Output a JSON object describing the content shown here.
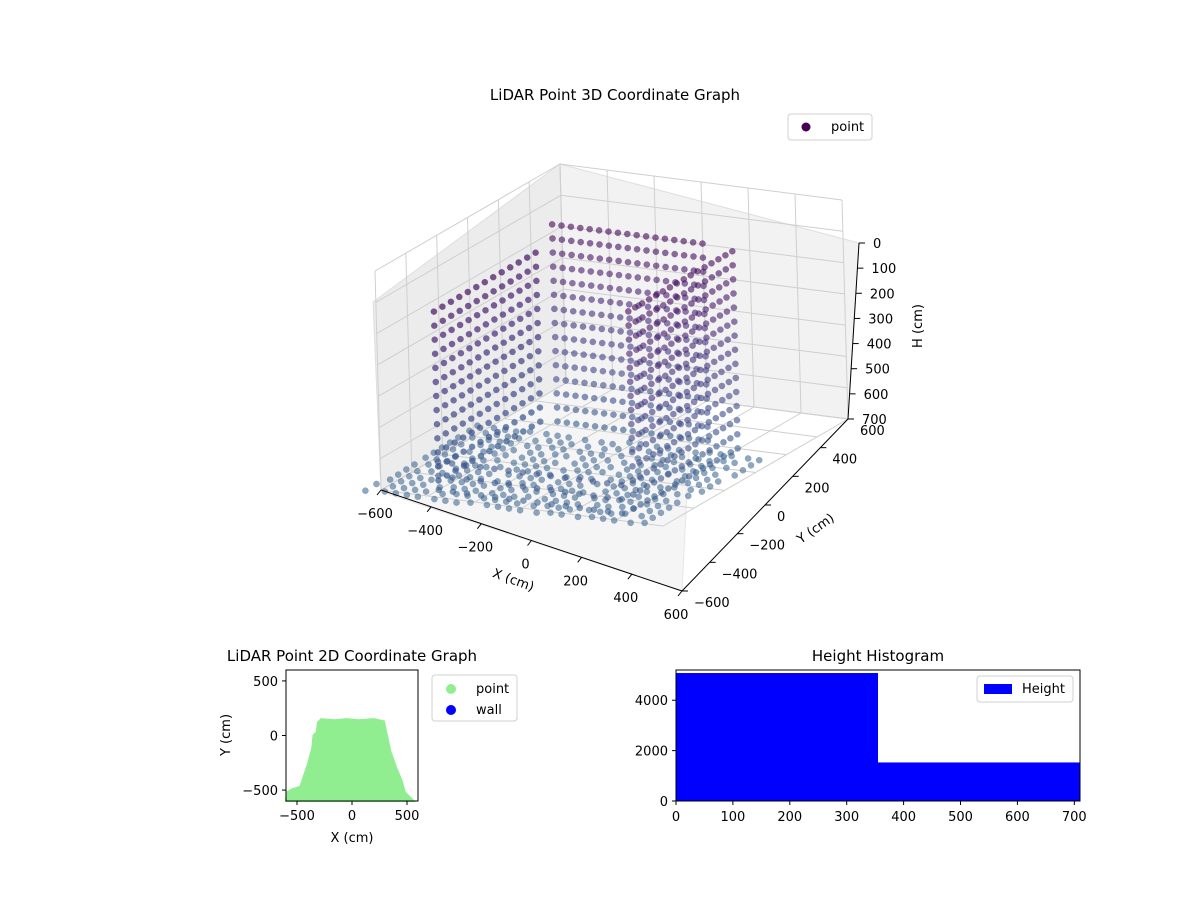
{
  "chart_data": [
    {
      "type": "scatter",
      "projection": "3d",
      "title": "LiDAR Point 3D Coordinate Graph",
      "xlabel": "X (cm)",
      "ylabel": "Y (cm)",
      "zlabel": "H (cm)",
      "xlim": [
        -600,
        600
      ],
      "ylim": [
        -600,
        600
      ],
      "zlim": [
        700,
        0
      ],
      "z_axis_inverted": true,
      "xticks": [
        -600,
        -400,
        -200,
        0,
        200,
        400,
        600
      ],
      "yticks": [
        -600,
        -400,
        -200,
        0,
        200,
        400,
        600
      ],
      "zticks": [
        0,
        100,
        200,
        300,
        400,
        500,
        600,
        700
      ],
      "legend": {
        "placement": "top-right",
        "entries": [
          {
            "label": "point",
            "color": "#440154"
          }
        ]
      },
      "colormap": "viridis",
      "grid": true,
      "series": [
        {
          "name": "point"
        }
      ],
      "walls": [
        {
          "side": "back",
          "x": [
            -340,
            320
          ],
          "y": 150,
          "h": [
            40,
            700
          ]
        },
        {
          "side": "left",
          "x": -380,
          "y": [
            -560,
            150
          ],
          "h": [
            120,
            700
          ]
        },
        {
          "side": "right",
          "x": 450,
          "y": [
            -560,
            150
          ],
          "h": [
            40,
            700
          ]
        },
        {
          "side": "front",
          "x": [
            -380,
            450
          ],
          "y": -560,
          "h": [
            600,
            700
          ]
        }
      ],
      "floor": {
        "x": [
          -620,
          580
        ],
        "y": [
          -600,
          150
        ],
        "h": 700
      }
    },
    {
      "type": "scatter",
      "title": "LiDAR Point 2D Coordinate Graph",
      "xlabel": "X (cm)",
      "ylabel": "Y (cm)",
      "xlim": [
        -600,
        600
      ],
      "ylim": [
        -600,
        600
      ],
      "xticks": [
        -500,
        0,
        500
      ],
      "yticks": [
        -500,
        0,
        500
      ],
      "legend": {
        "placement": "outside-right",
        "entries": [
          {
            "label": "point",
            "color": "#90ee90"
          },
          {
            "label": "wall",
            "color": "#0000ff"
          }
        ]
      },
      "series": [
        {
          "name": "point",
          "color": "#90ee90",
          "outline": [
            [
              -600,
              -590
            ],
            [
              -590,
              -520
            ],
            [
              -540,
              -490
            ],
            [
              -470,
              -470
            ],
            [
              -400,
              -260
            ],
            [
              -360,
              -110
            ],
            [
              -350,
              0
            ],
            [
              -320,
              30
            ],
            [
              -310,
              120
            ],
            [
              -280,
              150
            ],
            [
              -150,
              140
            ],
            [
              -50,
              150
            ],
            [
              60,
              140
            ],
            [
              200,
              150
            ],
            [
              290,
              130
            ],
            [
              300,
              80
            ],
            [
              320,
              -10
            ],
            [
              350,
              -150
            ],
            [
              400,
              -290
            ],
            [
              450,
              -410
            ],
            [
              480,
              -520
            ],
            [
              520,
              -560
            ],
            [
              560,
              -600
            ],
            [
              -600,
              -600
            ]
          ]
        },
        {
          "name": "wall",
          "color": "#0000ff",
          "values": []
        }
      ]
    },
    {
      "type": "bar",
      "subtype": "histogram",
      "title": "Height Histogram",
      "xlim": [
        0,
        710
      ],
      "ylim": [
        0,
        5200
      ],
      "xticks": [
        0,
        100,
        200,
        300,
        400,
        500,
        600,
        700
      ],
      "yticks": [
        0,
        2000,
        4000
      ],
      "legend": {
        "placement": "top-right",
        "entries": [
          {
            "label": "Height",
            "color": "#0000ff"
          }
        ]
      },
      "series": [
        {
          "name": "Height",
          "color": "#0000ff"
        }
      ],
      "bins": [
        {
          "x0": 0,
          "x1": 355,
          "count": 5080
        },
        {
          "x0": 355,
          "x1": 710,
          "count": 1530
        }
      ]
    }
  ]
}
